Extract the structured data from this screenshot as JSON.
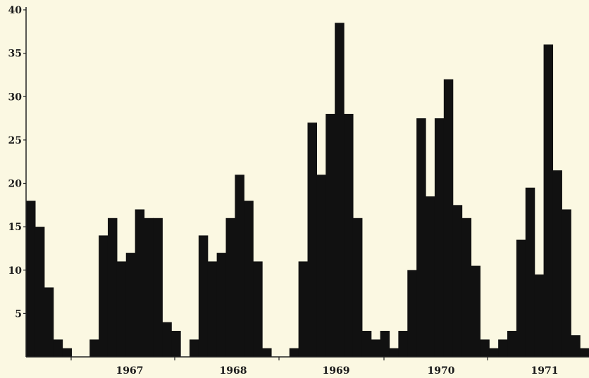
{
  "chart_data": {
    "type": "bar",
    "title": "",
    "xlabel": "",
    "ylabel": "",
    "ylim": [
      0,
      40
    ],
    "yticks": [
      {
        "value": 5,
        "label": "5"
      },
      {
        "value": 10,
        "label": "10"
      },
      {
        "value": 15,
        "label": "15"
      },
      {
        "value": 20,
        "label": "20"
      },
      {
        "value": 25,
        "label": "25"
      },
      {
        "value": 30,
        "label": "30"
      },
      {
        "value": 35,
        "label": "35"
      },
      {
        "value": 40,
        "label": "40"
      }
    ],
    "year_labels": [
      "1967",
      "1968",
      "1969",
      "1970",
      "1971"
    ],
    "grid": false,
    "colors": {
      "bar": "#111111",
      "background": "#fbf8e2",
      "axis": "#222222"
    },
    "series": [
      {
        "values": [
          18,
          15,
          8,
          2,
          1,
          0,
          0,
          2,
          14,
          16,
          11,
          12,
          17,
          16,
          16,
          4,
          3,
          0,
          2,
          14,
          11,
          12,
          16,
          21,
          18,
          11,
          1,
          0,
          0,
          1,
          11,
          27,
          21,
          28,
          38.5,
          28,
          16,
          3,
          2,
          3,
          1,
          3,
          10,
          27.5,
          18.5,
          27.5,
          32,
          17.5,
          16,
          10.5,
          2,
          1,
          2,
          3,
          13.5,
          19.5,
          9.5,
          36,
          21.5,
          17,
          2.5,
          1
        ]
      }
    ]
  }
}
